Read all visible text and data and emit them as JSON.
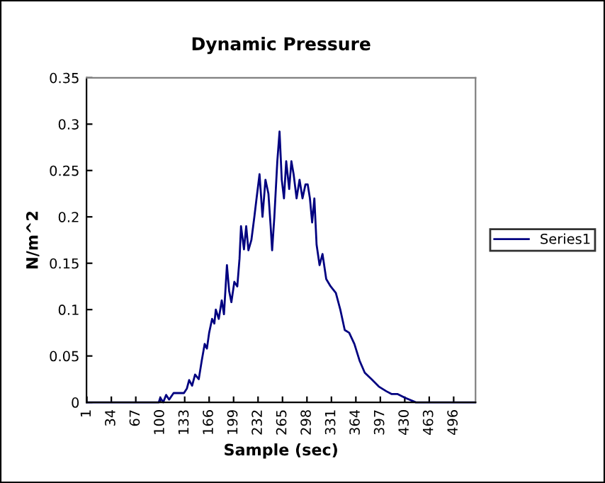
{
  "chart_data": {
    "type": "line",
    "title": "Dynamic Pressure",
    "xlabel": "Sample (sec)",
    "ylabel": "N/m^2",
    "xlim": [
      0.5,
      525.5
    ],
    "xticks": [
      1,
      34,
      67,
      100,
      133,
      166,
      199,
      232,
      265,
      298,
      331,
      364,
      397,
      430,
      463,
      496
    ],
    "ylim": [
      0,
      0.35
    ],
    "yticks": [
      0,
      0.05,
      0.1,
      0.15,
      0.2,
      0.25,
      0.3,
      0.35
    ],
    "series": [
      {
        "name": "Series1",
        "color": "#000080",
        "x": [
          1,
          50,
          98,
          100,
          104,
          108,
          112,
          118,
          125,
          132,
          136,
          139,
          143,
          147,
          152,
          156,
          160,
          163,
          166,
          170,
          173,
          175,
          179,
          183,
          186,
          190,
          193,
          196,
          200,
          204,
          207,
          209,
          213,
          216,
          219,
          223,
          227,
          230,
          234,
          238,
          242,
          246,
          249,
          251,
          254,
          258,
          261,
          264,
          267,
          270,
          274,
          277,
          280,
          284,
          288,
          292,
          296,
          299,
          302,
          305,
          308,
          311,
          315,
          319,
          324,
          330,
          337,
          343,
          349,
          355,
          362,
          369,
          376,
          385,
          395,
          405,
          412,
          420,
          430,
          445,
          480,
          525
        ],
        "values": [
          0,
          0,
          0,
          0.005,
          0,
          0.008,
          0.003,
          0.01,
          0.01,
          0.01,
          0.015,
          0.024,
          0.018,
          0.03,
          0.025,
          0.045,
          0.063,
          0.058,
          0.075,
          0.09,
          0.085,
          0.1,
          0.09,
          0.11,
          0.095,
          0.148,
          0.12,
          0.108,
          0.13,
          0.125,
          0.155,
          0.19,
          0.165,
          0.19,
          0.164,
          0.175,
          0.2,
          0.22,
          0.246,
          0.2,
          0.24,
          0.225,
          0.19,
          0.164,
          0.2,
          0.26,
          0.292,
          0.24,
          0.22,
          0.26,
          0.23,
          0.26,
          0.246,
          0.22,
          0.24,
          0.22,
          0.235,
          0.235,
          0.22,
          0.194,
          0.22,
          0.17,
          0.148,
          0.16,
          0.133,
          0.125,
          0.118,
          0.1,
          0.078,
          0.075,
          0.063,
          0.045,
          0.032,
          0.025,
          0.017,
          0.012,
          0.009,
          0.009,
          0.005,
          0,
          0,
          0
        ]
      }
    ],
    "legend": "right",
    "grid": false
  }
}
